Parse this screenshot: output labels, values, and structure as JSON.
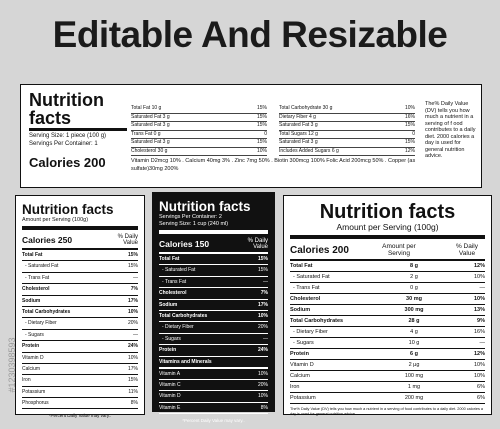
{
  "header": {
    "title": "Editable And Resizable"
  },
  "stock_id": "#1230398593",
  "label1": {
    "title": "Nutrition facts",
    "serving_size": "Serving Size: 1 piece (100 g)",
    "servings": "Servings Per Container: 1",
    "calories": "Calories 200",
    "col1": [
      [
        "Total Fat 10 g",
        "15%"
      ],
      [
        "Saturated Fat 3 g",
        "15%"
      ],
      [
        "Saturated Fat 3 g",
        "15%"
      ],
      [
        "Trans Fat 0 g",
        "0"
      ],
      [
        "Saturated Fat 3 g",
        "15%"
      ],
      [
        "Cholesterol 30 g",
        "10%"
      ]
    ],
    "col2": [
      [
        "Total Carbohydrate 30 g",
        "10%"
      ],
      [
        "Dietary Fiber 4 g",
        "16%"
      ],
      [
        "Saturated Fat 3 g",
        "15%"
      ],
      [
        "Total Sugars 12 g",
        "0"
      ],
      [
        "Saturated Fat 3 g",
        "15%"
      ],
      [
        "Includes Added Sugars 6 g",
        "12%"
      ]
    ],
    "vitamins": "Vitamin D2mcg 10% . Calcium 40mg 3% . Zinc 7mg 50% . Biotin 300mcg 100% Folic Acid 200mcg 50% . Copper (as sulfate)30mg 200%",
    "note": "The% Daily Value (DV) tells you how much a nutrient in a serving of f ood contributes to a daily diet. 2000 calories a day is used for general nutrition advice."
  },
  "label2": {
    "title": "Nutrition facts",
    "subtitle": "Amount per Serving (100g)",
    "calories": "Calories 250",
    "dv_header": "% Daily Value",
    "rows": [
      [
        "Total Fat",
        "15%"
      ],
      [
        "- Saturated Fat",
        "15%"
      ],
      [
        "- Trans Fat",
        "—"
      ],
      [
        "Cholesterol",
        "7%"
      ],
      [
        "Sodium",
        "17%"
      ],
      [
        "Total Carbohydrates",
        "10%"
      ],
      [
        "- Dietary Fiber",
        "20%"
      ],
      [
        "- Sugars",
        "—"
      ],
      [
        "Protein",
        "24%"
      ],
      [
        "Vitamin D",
        "10%"
      ],
      [
        "Calcium",
        "17%"
      ],
      [
        "Iron",
        "15%"
      ],
      [
        "Potassium",
        "11%"
      ],
      [
        "Phosphorus",
        "8%"
      ]
    ],
    "footer": "*Percent Daily Value may vary.."
  },
  "label3": {
    "title": "Nutrition facts",
    "servings": "Servings Per Container: 2",
    "serving_size": "Serving Size: 1 cup (240 ml)",
    "calories": "Calories 150",
    "dv_header": "% Daily Value",
    "rows": [
      [
        "Total Fat",
        "15%"
      ],
      [
        "- Saturated Fat",
        "15%"
      ],
      [
        "- Trans Fat",
        "—"
      ],
      [
        "Cholesterol",
        "7%"
      ],
      [
        "Sodium",
        "17%"
      ],
      [
        "Total Carbohydrates",
        "10%"
      ],
      [
        "- Dietary Fiber",
        "20%"
      ],
      [
        "- Sugars",
        "—"
      ],
      [
        "Protein",
        "24%"
      ]
    ],
    "section": "Vitamins and Minerals",
    "rows2": [
      [
        "Vitamin A",
        "10%"
      ],
      [
        "Vitamin C",
        "20%"
      ],
      [
        "Vitamin D",
        "10%"
      ],
      [
        "Vitamin E",
        "8%"
      ]
    ],
    "footer": "*Percent Daily Value may vary.."
  },
  "label4": {
    "title": "Nutrition facts",
    "subtitle": "Amount per Serving (100g)",
    "calories": "Calories 200",
    "amount_header": "Amount per Serving",
    "dv_header": "% Daily Value",
    "rows": [
      [
        "Total Fat",
        "8 g",
        "12%"
      ],
      [
        "- Saturated Fat",
        "2 g",
        "10%"
      ],
      [
        "- Trans Fat",
        "0 g",
        "—"
      ],
      [
        "Cholesterol",
        "30 mg",
        "10%"
      ],
      [
        "Sodium",
        "300 mg",
        "13%"
      ],
      [
        "Total Carbohydrates",
        "28 g",
        "9%"
      ],
      [
        "- Dietary Fiber",
        "4 g",
        "16%"
      ],
      [
        "- Sugars",
        "10 g",
        "—"
      ],
      [
        "Protein",
        "6 g",
        "12%"
      ],
      [
        "Vitamin D",
        "2 µg",
        "10%"
      ],
      [
        "Calcium",
        "100 mg",
        "10%"
      ],
      [
        "Iron",
        "1 mg",
        "6%"
      ],
      [
        "Potassium",
        "200 mg",
        "6%"
      ]
    ],
    "footer": "The% Daily Value (DV) tells you how much a nutrient in a serving of food contributes to a daily diet. 2000 calories a day is used for general nutrition advice."
  }
}
